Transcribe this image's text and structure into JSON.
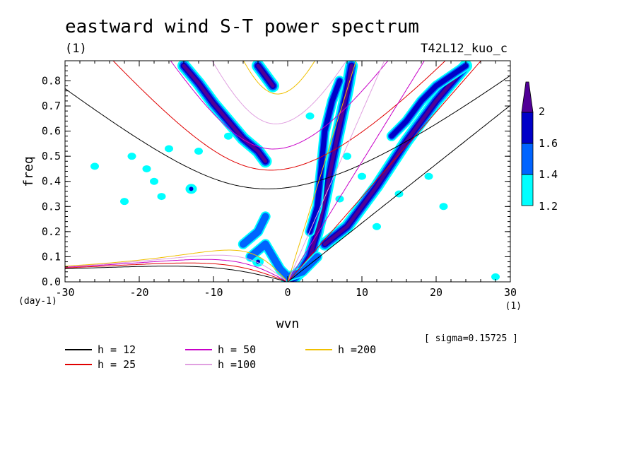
{
  "chart_data": {
    "type": "heatmap",
    "title": "eastward wind S-T power spectrum",
    "subtitle_left": "(1)",
    "subtitle_right": "T42L12_kuo_c",
    "xlabel": "wvn",
    "ylabel": "freq",
    "x_unit": "(1)",
    "y_unit": "(day-1)",
    "xlim": [
      -30,
      30
    ],
    "ylim": [
      0,
      0.88
    ],
    "x_ticks": [
      "-30",
      "-20",
      "-10",
      "0",
      "10",
      "20",
      "30"
    ],
    "x_tick_values": [
      -30,
      -20,
      -10,
      0,
      10,
      20,
      30
    ],
    "y_ticks": [
      "0.0",
      "0.1",
      "0.2",
      "0.3",
      "0.4",
      "0.5",
      "0.6",
      "0.7",
      "0.8"
    ],
    "y_tick_values": [
      0,
      0.1,
      0.2,
      0.3,
      0.4,
      0.5,
      0.6,
      0.7,
      0.8
    ],
    "sigma_label": "[ sigma=0.15725 ]",
    "colorbar": {
      "levels": [
        "1.2",
        "1.4",
        "1.6",
        "2"
      ],
      "level_values": [
        1.2,
        1.4,
        1.6,
        2.0
      ],
      "colors": [
        "#00ffff",
        "#0064ff",
        "#0000c8",
        "#500096"
      ],
      "shading": "1.2 to 1.4 cyan, 1.4 to 1.6 blue, 1.6 to 2 dark blue, above 2 purple"
    },
    "contour_colors": {
      "level1": "#00ffff",
      "level2": "#0064ff",
      "level3": "#0000c8",
      "level4": "#500096"
    },
    "contours": [
      {
        "name": "kelvin-band",
        "points": [
          [
            0,
            0
          ],
          [
            1,
            0.02
          ],
          [
            2,
            0.05
          ],
          [
            3,
            0.1
          ],
          [
            4,
            0.2
          ],
          [
            5,
            0.33
          ],
          [
            6,
            0.48
          ],
          [
            7,
            0.62
          ],
          [
            8,
            0.76
          ],
          [
            8.6,
            0.86
          ]
        ],
        "strength": 4
      },
      {
        "name": "eastward-band",
        "points": [
          [
            5,
            0.15
          ],
          [
            8,
            0.22
          ],
          [
            10,
            0.3
          ],
          [
            12,
            0.38
          ],
          [
            14,
            0.47
          ],
          [
            16,
            0.56
          ],
          [
            18,
            0.64
          ],
          [
            20,
            0.72
          ],
          [
            22,
            0.79
          ],
          [
            24,
            0.86
          ]
        ],
        "strength": 4
      },
      {
        "name": "eastward-band-2",
        "points": [
          [
            14,
            0.58
          ],
          [
            16,
            0.64
          ],
          [
            18,
            0.72
          ],
          [
            20,
            0.78
          ],
          [
            22,
            0.82
          ],
          [
            24,
            0.86
          ]
        ],
        "strength": 3
      },
      {
        "name": "westward-band",
        "points": [
          [
            -14,
            0.86
          ],
          [
            -12,
            0.79
          ],
          [
            -10,
            0.71
          ],
          [
            -8,
            0.64
          ],
          [
            -6,
            0.57
          ],
          [
            -4,
            0.52
          ],
          [
            -3,
            0.48
          ]
        ],
        "strength": 4
      },
      {
        "name": "westward-band-2",
        "points": [
          [
            -4,
            0.86
          ],
          [
            -3,
            0.82
          ],
          [
            -2,
            0.78
          ]
        ],
        "strength": 4
      },
      {
        "name": "mrg-band",
        "points": [
          [
            3,
            0.2
          ],
          [
            4,
            0.3
          ],
          [
            4.5,
            0.45
          ],
          [
            5,
            0.6
          ],
          [
            6,
            0.72
          ],
          [
            7,
            0.8
          ]
        ],
        "strength": 3
      },
      {
        "name": "low-freq-cluster",
        "points": [
          [
            -5,
            0.1
          ],
          [
            -3,
            0.15
          ],
          [
            -1,
            0.05
          ],
          [
            0,
            0.02
          ],
          [
            2,
            0.04
          ],
          [
            4,
            0.1
          ]
        ],
        "strength": 2
      },
      {
        "name": "low-freq-west",
        "points": [
          [
            -6,
            0.15
          ],
          [
            -4,
            0.2
          ],
          [
            -3,
            0.26
          ]
        ],
        "strength": 2
      }
    ],
    "speckles": [
      {
        "x": -21,
        "y": 0.5,
        "r": 1
      },
      {
        "x": -19,
        "y": 0.45,
        "r": 1
      },
      {
        "x": -13,
        "y": 0.37,
        "r": 2
      },
      {
        "x": -17,
        "y": 0.34,
        "r": 1
      },
      {
        "x": -22,
        "y": 0.32,
        "r": 1
      },
      {
        "x": -16,
        "y": 0.53,
        "r": 1
      },
      {
        "x": -18,
        "y": 0.4,
        "r": 1
      },
      {
        "x": -8,
        "y": 0.58,
        "r": 1
      },
      {
        "x": 3,
        "y": 0.66,
        "r": 1
      },
      {
        "x": 7,
        "y": 0.33,
        "r": 1
      },
      {
        "x": 10,
        "y": 0.42,
        "r": 1
      },
      {
        "x": 8,
        "y": 0.5,
        "r": 1
      },
      {
        "x": 15,
        "y": 0.35,
        "r": 1
      },
      {
        "x": 19,
        "y": 0.42,
        "r": 1
      },
      {
        "x": 28,
        "y": 0.02,
        "r": 1
      },
      {
        "x": -12,
        "y": 0.52,
        "r": 1
      },
      {
        "x": -26,
        "y": 0.46,
        "r": 1
      },
      {
        "x": -4,
        "y": 0.08,
        "r": 2
      },
      {
        "x": 21,
        "y": 0.3,
        "r": 1
      },
      {
        "x": 12,
        "y": 0.22,
        "r": 1
      }
    ],
    "series": [
      {
        "name": "h = 12",
        "color": "#000000",
        "h": 12
      },
      {
        "name": "h = 25",
        "color": "#e00000",
        "h": 25
      },
      {
        "name": "h = 50",
        "color": "#c800c8",
        "h": 50
      },
      {
        "name": "h =100",
        "color": "#e0a0e0",
        "h": 100
      },
      {
        "name": "h =200",
        "color": "#f0c000",
        "h": 200
      }
    ],
    "grid": false,
    "legend_position": "bottom-left"
  }
}
